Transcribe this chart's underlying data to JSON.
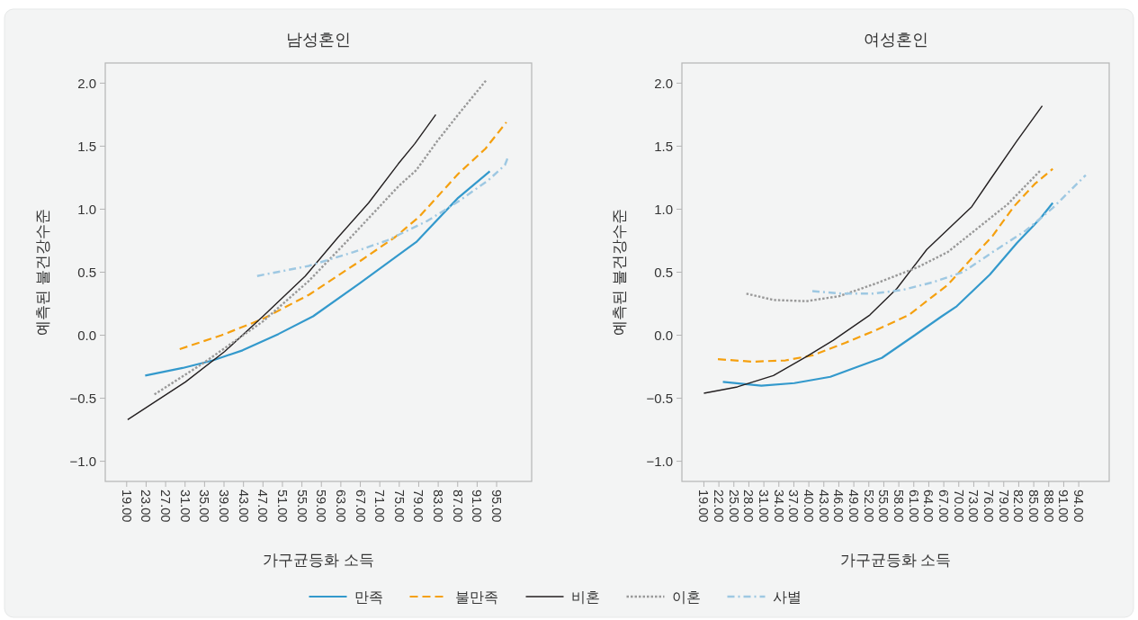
{
  "chart_data": [
    {
      "type": "line",
      "title": "남성혼인",
      "xlabel": "가구균등화 소득",
      "ylabel": "예측된 불건강수준",
      "legend": "bottom",
      "grid": false,
      "xlim": [
        14.6,
        102.2
      ],
      "ylim": [
        -1.16,
        2.16
      ],
      "xticks": [
        {
          "value": 19,
          "label": "19.00"
        },
        {
          "value": 23,
          "label": "23.00"
        },
        {
          "value": 27,
          "label": "27.00"
        },
        {
          "value": 31,
          "label": "31.00"
        },
        {
          "value": 35,
          "label": "35.00"
        },
        {
          "value": 39,
          "label": "39.00"
        },
        {
          "value": 43,
          "label": "43.00"
        },
        {
          "value": 47,
          "label": "47.00"
        },
        {
          "value": 51,
          "label": "51.00"
        },
        {
          "value": 55,
          "label": "55.00"
        },
        {
          "value": 59,
          "label": "59.00"
        },
        {
          "value": 63,
          "label": "63.00"
        },
        {
          "value": 67,
          "label": "67.00"
        },
        {
          "value": 71,
          "label": "71.00"
        },
        {
          "value": 75,
          "label": "75.00"
        },
        {
          "value": 79,
          "label": "79.00"
        },
        {
          "value": 83,
          "label": "83.00"
        },
        {
          "value": 87,
          "label": "87.00"
        },
        {
          "value": 91,
          "label": "91.00"
        },
        {
          "value": 95,
          "label": "95.00"
        }
      ],
      "yticks": [
        {
          "value": 2,
          "label": "2.0"
        },
        {
          "value": 1.5,
          "label": "1.5"
        },
        {
          "value": 1,
          "label": "1.0"
        },
        {
          "value": 0.5,
          "label": "0.5"
        },
        {
          "value": 0,
          "label": "0.0"
        },
        {
          "value": -0.5,
          "label": "−0.5"
        },
        {
          "value": -1,
          "label": "−1.0"
        }
      ],
      "series": [
        {
          "name": "만족",
          "color": "#3399cc",
          "line_style": "solid",
          "x": [
            22.8,
            30.5,
            36.7,
            42.8,
            50.2,
            57.3,
            66.8,
            78.5,
            87.1,
            93.6
          ],
          "values": [
            -0.32,
            -0.26,
            -0.2,
            -0.12,
            0.01,
            0.15,
            0.41,
            0.74,
            1.09,
            1.3
          ]
        },
        {
          "name": "불만족",
          "color": "#f5a00f",
          "line_style": "dashed",
          "x": [
            29.9,
            38.5,
            47,
            56.4,
            67.4,
            74.2,
            79.1,
            87.1,
            92.7,
            97
          ],
          "values": [
            -0.11,
            0.0,
            0.13,
            0.32,
            0.6,
            0.78,
            0.94,
            1.28,
            1.48,
            1.69
          ]
        },
        {
          "name": "비혼",
          "color": "#231f20",
          "line_style": "solid",
          "x": [
            19.2,
            31.1,
            39.1,
            47,
            55.7,
            62.5,
            68.7,
            74.8,
            78.2,
            82.5
          ],
          "values": [
            -0.67,
            -0.37,
            -0.13,
            0.15,
            0.47,
            0.78,
            1.05,
            1.36,
            1.52,
            1.75
          ]
        },
        {
          "name": "이혼",
          "color": "#999999",
          "line_style": "dotted",
          "x": [
            24.7,
            34.8,
            47,
            56.4,
            65.6,
            74.8,
            78.5,
            82.8,
            87.1,
            93
          ],
          "values": [
            -0.47,
            -0.22,
            0.11,
            0.43,
            0.8,
            1.18,
            1.31,
            1.54,
            1.75,
            2.03
          ]
        },
        {
          "name": "사별",
          "color": "#9ec8e2",
          "line_style": "dashdot",
          "x": [
            45.8,
            56.4,
            65.6,
            72.4,
            80.9,
            87.1,
            93.3,
            96.7,
            97.3
          ],
          "values": [
            0.47,
            0.55,
            0.66,
            0.75,
            0.91,
            1.06,
            1.23,
            1.35,
            1.41
          ]
        }
      ]
    },
    {
      "type": "line",
      "title": "여성혼인",
      "xlabel": "가구균등화 소득",
      "ylabel": "예측된 불건강수준",
      "grid": false,
      "xlim": [
        14.6,
        100.1
      ],
      "ylim": [
        -1.16,
        2.16
      ],
      "xticks": [
        {
          "value": 19,
          "label": "19.00"
        },
        {
          "value": 22,
          "label": "22.00"
        },
        {
          "value": 25,
          "label": "25.00"
        },
        {
          "value": 28,
          "label": "28.00"
        },
        {
          "value": 31,
          "label": "31.00"
        },
        {
          "value": 34,
          "label": "34.00"
        },
        {
          "value": 37,
          "label": "37.00"
        },
        {
          "value": 40,
          "label": "40.00"
        },
        {
          "value": 43,
          "label": "43.00"
        },
        {
          "value": 46,
          "label": "46.00"
        },
        {
          "value": 49,
          "label": "49.00"
        },
        {
          "value": 52,
          "label": "52.00"
        },
        {
          "value": 55,
          "label": "55.00"
        },
        {
          "value": 58,
          "label": "58.00"
        },
        {
          "value": 61,
          "label": "61.00"
        },
        {
          "value": 64,
          "label": "64.00"
        },
        {
          "value": 67,
          "label": "67.00"
        },
        {
          "value": 70,
          "label": "70.00"
        },
        {
          "value": 73,
          "label": "73.00"
        },
        {
          "value": 76,
          "label": "76.00"
        },
        {
          "value": 79,
          "label": "79.00"
        },
        {
          "value": 82,
          "label": "82.00"
        },
        {
          "value": 85,
          "label": "85.00"
        },
        {
          "value": 88,
          "label": "88.00"
        },
        {
          "value": 91,
          "label": "91.00"
        },
        {
          "value": 94,
          "label": "94.00"
        }
      ],
      "yticks": [
        {
          "value": 2,
          "label": "2.0"
        },
        {
          "value": 1.5,
          "label": "1.5"
        },
        {
          "value": 1,
          "label": "1.0"
        },
        {
          "value": 0.5,
          "label": "0.5"
        },
        {
          "value": 0,
          "label": "0.0"
        },
        {
          "value": -0.5,
          "label": "−0.5"
        },
        {
          "value": -1,
          "label": "−1.0"
        }
      ],
      "series": [
        {
          "name": "만족",
          "color": "#3399cc",
          "line_style": "solid",
          "x": [
            22.8,
            30.5,
            37.1,
            44.3,
            49.8,
            54.6,
            61.2,
            66.6,
            69.6,
            76.2,
            81.6,
            86.4,
            88.8
          ],
          "values": [
            -0.37,
            -0.4,
            -0.38,
            -0.33,
            -0.25,
            -0.18,
            0.0,
            0.15,
            0.23,
            0.48,
            0.73,
            0.93,
            1.05
          ]
        },
        {
          "name": "불만족",
          "color": "#f5a00f",
          "line_style": "dashed",
          "x": [
            21.8,
            28.7,
            35.3,
            40.7,
            47.3,
            53.4,
            60,
            67.8,
            72.6,
            76.8,
            81,
            85.2,
            88.8
          ],
          "values": [
            -0.19,
            -0.21,
            -0.2,
            -0.16,
            -0.06,
            0.04,
            0.16,
            0.4,
            0.61,
            0.79,
            1.02,
            1.2,
            1.32
          ]
        },
        {
          "name": "비혼",
          "color": "#231f20",
          "line_style": "solid",
          "x": [
            19,
            25.7,
            32.9,
            39.5,
            44.9,
            52.2,
            57.6,
            63.6,
            72.6,
            76.2,
            81.6,
            86.7
          ],
          "values": [
            -0.46,
            -0.41,
            -0.32,
            -0.17,
            -0.04,
            0.16,
            0.37,
            0.68,
            1.02,
            1.23,
            1.54,
            1.82
          ]
        },
        {
          "name": "이혼",
          "color": "#999999",
          "line_style": "dotted",
          "x": [
            27.5,
            32.9,
            39.5,
            46.1,
            53.4,
            61.8,
            67.8,
            73.8,
            79.8,
            86.4
          ],
          "values": [
            0.33,
            0.28,
            0.27,
            0.31,
            0.41,
            0.54,
            0.66,
            0.85,
            1.04,
            1.31
          ]
        },
        {
          "name": "사별",
          "color": "#9ec8e2",
          "line_style": "dashdot",
          "x": [
            40.7,
            46.7,
            52.8,
            58.8,
            64.8,
            70.8,
            76.8,
            83.4,
            88.8,
            95.4
          ],
          "values": [
            0.35,
            0.33,
            0.33,
            0.36,
            0.42,
            0.5,
            0.66,
            0.83,
            1.01,
            1.27
          ]
        }
      ]
    }
  ]
}
